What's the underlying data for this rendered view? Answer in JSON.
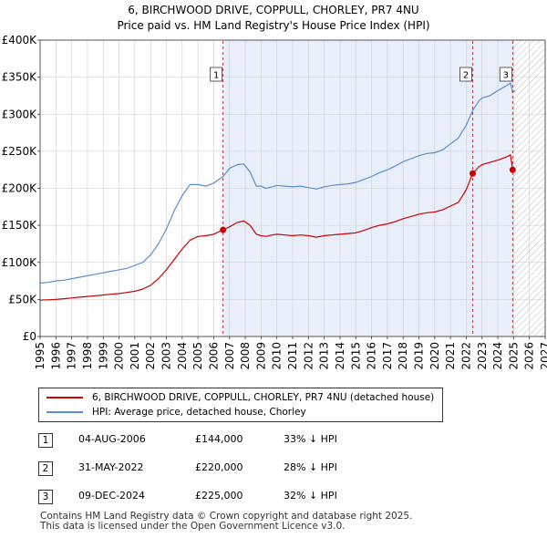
{
  "title_line1": "6, BIRCHWOOD DRIVE, COPPULL, CHORLEY, PR7 4NU",
  "title_line2": "Price paid vs. HM Land Registry's House Price Index (HPI)",
  "colors": {
    "property": "#cc0000",
    "hpi": "#5b8fd1",
    "shade": "#e8eefa",
    "grid": "#cccccc",
    "marker_line": "#cc0000"
  },
  "legend": {
    "property": "6, BIRCHWOOD DRIVE, COPPULL, CHORLEY, PR7 4NU (detached house)",
    "hpi": "HPI: Average price, detached house, Chorley"
  },
  "sales": [
    {
      "num": "1",
      "date": "04-AUG-2006",
      "price": "£144,000",
      "hpi": "33% ↓ HPI"
    },
    {
      "num": "2",
      "date": "31-MAY-2022",
      "price": "£220,000",
      "hpi": "28% ↓ HPI"
    },
    {
      "num": "3",
      "date": "09-DEC-2024",
      "price": "£225,000",
      "hpi": "32% ↓ HPI"
    }
  ],
  "footer_line1": "Contains HM Land Registry data © Crown copyright and database right 2025.",
  "footer_line2": "This data is licensed under the Open Government Licence v3.0.",
  "chart_data": {
    "type": "line",
    "title": "6, BIRCHWOOD DRIVE, COPPULL, CHORLEY, PR7 4NU",
    "subtitle": "Price paid vs. HM Land Registry's House Price Index (HPI)",
    "xlim": [
      1995,
      2027
    ],
    "ylim": [
      0,
      400000
    ],
    "x_ticks": [
      1995,
      1996,
      1997,
      1998,
      1999,
      2000,
      2001,
      2002,
      2003,
      2004,
      2005,
      2006,
      2007,
      2008,
      2009,
      2010,
      2011,
      2012,
      2013,
      2014,
      2015,
      2016,
      2017,
      2018,
      2019,
      2020,
      2021,
      2022,
      2023,
      2024,
      2025,
      2026,
      2027
    ],
    "y_ticks": [
      0,
      50000,
      100000,
      150000,
      200000,
      250000,
      300000,
      350000,
      400000
    ],
    "y_tick_labels": [
      "£0",
      "£50K",
      "£100K",
      "£150K",
      "£200K",
      "£250K",
      "£300K",
      "£350K",
      "£400K"
    ],
    "grid": true,
    "shaded_ranges": [
      [
        2006.59,
        2025.0
      ]
    ],
    "hatched_range": [
      2025.0,
      2027
    ],
    "series": [
      {
        "name": "HPI: Average price, detached house, Chorley",
        "x": [
          1995.0,
          1995.5,
          1996.0,
          1996.5,
          1997.0,
          1997.5,
          1998.0,
          1998.5,
          1999.0,
          1999.5,
          2000.0,
          2000.5,
          2001.0,
          2001.5,
          2002.0,
          2002.5,
          2003.0,
          2003.5,
          2004.0,
          2004.5,
          2005.0,
          2005.5,
          2006.0,
          2006.59,
          2007.0,
          2007.5,
          2007.9,
          2008.3,
          2008.7,
          2009.0,
          2009.3,
          2009.7,
          2010.0,
          2010.5,
          2011.0,
          2011.5,
          2012.0,
          2012.5,
          2013.0,
          2013.5,
          2014.0,
          2014.5,
          2015.0,
          2015.5,
          2016.0,
          2016.5,
          2017.0,
          2017.5,
          2018.0,
          2018.5,
          2019.0,
          2019.5,
          2020.0,
          2020.5,
          2021.0,
          2021.5,
          2022.0,
          2022.41,
          2022.8,
          2023.0,
          2023.5,
          2024.0,
          2024.5,
          2024.8,
          2024.94,
          2025.1
        ],
        "values": [
          72000,
          73000,
          75000,
          76000,
          78000,
          80000,
          82000,
          84000,
          86000,
          88000,
          90000,
          92000,
          96000,
          100000,
          110000,
          125000,
          145000,
          170000,
          190000,
          205000,
          205000,
          203000,
          207000,
          216000,
          227000,
          232000,
          233000,
          222000,
          203000,
          203000,
          200000,
          202000,
          204000,
          203000,
          202000,
          203000,
          201000,
          199000,
          202000,
          204000,
          205000,
          206000,
          208000,
          212000,
          216000,
          221000,
          225000,
          230000,
          236000,
          240000,
          244000,
          247000,
          248000,
          252000,
          260000,
          268000,
          285000,
          305000,
          318000,
          322000,
          325000,
          332000,
          338000,
          342000,
          330000,
          332000
        ]
      },
      {
        "name": "6, BIRCHWOOD DRIVE, COPPULL, CHORLEY, PR7 4NU (detached house)",
        "x": [
          1995.0,
          1995.5,
          1996.0,
          1996.5,
          1997.0,
          1997.5,
          1998.0,
          1998.5,
          1999.0,
          1999.5,
          2000.0,
          2000.5,
          2001.0,
          2001.5,
          2002.0,
          2002.5,
          2003.0,
          2003.5,
          2004.0,
          2004.5,
          2005.0,
          2005.5,
          2006.0,
          2006.59,
          2007.0,
          2007.5,
          2007.9,
          2008.3,
          2008.7,
          2009.0,
          2009.3,
          2009.7,
          2010.0,
          2010.5,
          2011.0,
          2011.5,
          2012.0,
          2012.5,
          2013.0,
          2013.5,
          2014.0,
          2014.5,
          2015.0,
          2015.5,
          2016.0,
          2016.5,
          2017.0,
          2017.5,
          2018.0,
          2018.5,
          2019.0,
          2019.5,
          2020.0,
          2020.5,
          2021.0,
          2021.5,
          2022.0,
          2022.41,
          2022.8,
          2023.0,
          2023.5,
          2024.0,
          2024.5,
          2024.8,
          2024.94,
          2025.1
        ],
        "values": [
          49000,
          49500,
          50000,
          51000,
          52000,
          53000,
          54000,
          55000,
          56000,
          57000,
          58000,
          59500,
          61000,
          64000,
          69000,
          78000,
          90000,
          104000,
          118000,
          130000,
          135000,
          136000,
          138000,
          144000,
          148000,
          154000,
          156000,
          150000,
          138000,
          136000,
          135000,
          137000,
          138000,
          137000,
          136000,
          137000,
          136000,
          134000,
          136000,
          137000,
          138000,
          139000,
          140000,
          143000,
          147000,
          150000,
          152000,
          155000,
          159000,
          162000,
          165000,
          167000,
          168000,
          171000,
          176000,
          181000,
          198000,
          220000,
          229000,
          232000,
          235000,
          238000,
          242000,
          245000,
          225000,
          226000
        ]
      }
    ],
    "sale_markers": [
      {
        "label": "1",
        "x": 2006.59,
        "y": 144000
      },
      {
        "label": "2",
        "x": 2022.41,
        "y": 220000
      },
      {
        "label": "3",
        "x": 2024.94,
        "y": 225000
      }
    ]
  }
}
